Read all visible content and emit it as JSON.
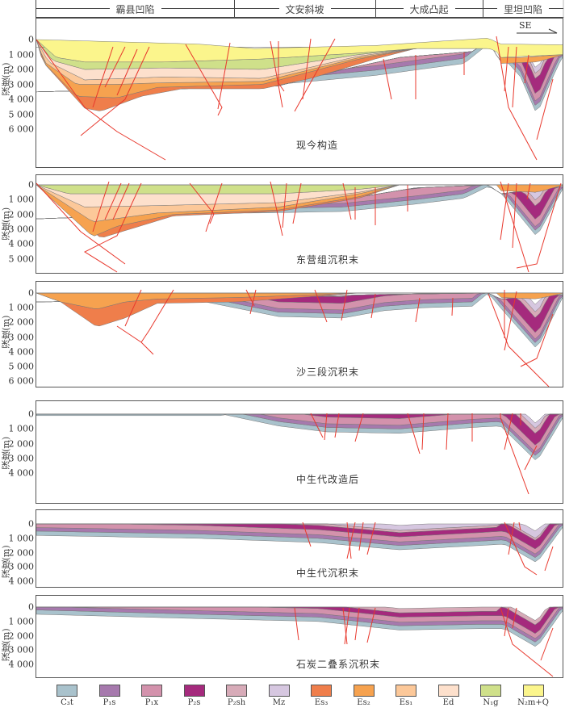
{
  "header": {
    "regions": [
      {
        "label": "霸县凹陷"
      },
      {
        "label": "文安斜坡"
      },
      {
        "label": "大成凸起"
      },
      {
        "label": "里坦凹陷"
      }
    ]
  },
  "direction_label": "SE",
  "y_axis_title": "深度(m)",
  "panels": [
    {
      "stage": "现今构造",
      "ticks": [
        "0",
        "1 000",
        "2 000",
        "3 000",
        "4 000",
        "5 000",
        "6 000"
      ]
    },
    {
      "stage": "东营组沉积末",
      "ticks": [
        "0",
        "1 000",
        "2 000",
        "3 000",
        "4 000",
        "5 000"
      ]
    },
    {
      "stage": "沙三段沉积末",
      "ticks": [
        "0",
        "1 000",
        "2 000",
        "3 000",
        "4 000",
        "5 000",
        "6 000"
      ]
    },
    {
      "stage": "中生代改造后",
      "ticks": [
        "0",
        "1 000",
        "2 000",
        "3 000",
        "4 000"
      ]
    },
    {
      "stage": "中生代沉积末",
      "ticks": [
        "0",
        "1 000",
        "2 000",
        "3 000",
        "4 000"
      ]
    },
    {
      "stage": "石炭二叠系沉积末",
      "ticks": [
        "0",
        "1 000",
        "2 000",
        "3 000",
        "4 000"
      ]
    }
  ],
  "legend": [
    {
      "key": "C3t",
      "label": "C₃t",
      "color": "#a9c2cc"
    },
    {
      "key": "P1s",
      "label": "P₁s",
      "color": "#a679ad"
    },
    {
      "key": "P1x",
      "label": "P₁x",
      "color": "#d392ac"
    },
    {
      "key": "P2s",
      "label": "P₂s",
      "color": "#a52a7d"
    },
    {
      "key": "P2sh",
      "label": "P₂sh",
      "color": "#d7abb8"
    },
    {
      "key": "Mz",
      "label": "Mz",
      "color": "#d6c7e0"
    },
    {
      "key": "Es3",
      "label": "Es₃",
      "color": "#ef7e4b"
    },
    {
      "key": "Es2",
      "label": "Es₂",
      "color": "#f6a24f"
    },
    {
      "key": "Es1",
      "label": "Es₁",
      "color": "#fcc899"
    },
    {
      "key": "Ed",
      "label": "Ed",
      "color": "#fde0cc"
    },
    {
      "key": "N1g",
      "label": "N₁g",
      "color": "#cfe08a"
    },
    {
      "key": "N2mQ",
      "label": "N₂m+Q",
      "color": "#fbf58c"
    }
  ],
  "colors": {
    "fault": "#e8382d",
    "outline": "#777777"
  }
}
